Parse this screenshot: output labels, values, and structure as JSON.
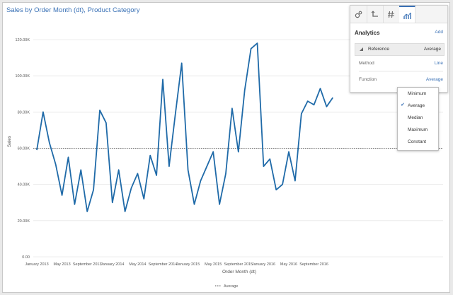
{
  "title": "Sales by Order Month (dt), Product Category",
  "panel": {
    "tabs": [
      {
        "icon": "gear-icon"
      },
      {
        "icon": "axis-icon"
      },
      {
        "icon": "hash-icon"
      },
      {
        "icon": "analytics-icon",
        "active": true
      }
    ],
    "heading": "Analytics",
    "add_label": "Add",
    "reference": {
      "label": "Reference",
      "value": "Average"
    },
    "method": {
      "label": "Method",
      "value": "Line"
    },
    "function": {
      "label": "Function",
      "value": "Average"
    }
  },
  "dropdown": {
    "options": [
      "Minimum",
      "Average",
      "Median",
      "Maximum",
      "Constant"
    ],
    "selected": "Average"
  },
  "legend": {
    "label": "Average"
  },
  "colors": {
    "line": "#1f6aa8",
    "accent": "#3b72b6",
    "reference": "#555555"
  },
  "chart_data": {
    "type": "line",
    "xlabel": "Order Month (dt)",
    "ylabel": "Sales",
    "ylim": [
      0,
      120000
    ],
    "y_ticks": [
      "0.00",
      "20.00K",
      "40.00K",
      "60.00K",
      "80.00K",
      "100.00K",
      "120.00K"
    ],
    "x_tick_labels": [
      "January 2013",
      "May 2013",
      "September 2013",
      "January 2014",
      "May 2014",
      "September 2014",
      "January 2015",
      "May 2015",
      "September 2015",
      "January 2016",
      "May 2016",
      "September 2016"
    ],
    "reference_line": {
      "label": "Average",
      "value": 60000
    },
    "series": [
      {
        "values": [
          59000,
          80000,
          63000,
          51000,
          34000,
          55000,
          29000,
          48000,
          25000,
          37000,
          81000,
          74000,
          30000,
          48000,
          25000,
          38000,
          46000,
          32000,
          56000,
          45000,
          98000,
          50000,
          79000,
          107000,
          48000,
          29000,
          42000,
          50000,
          58000,
          29000,
          46000,
          82000,
          58000,
          92000,
          115000,
          118000,
          50000,
          54000,
          37000,
          40000,
          58000,
          42000,
          79000,
          86000,
          84000,
          93000,
          83000,
          88000
        ]
      }
    ]
  }
}
